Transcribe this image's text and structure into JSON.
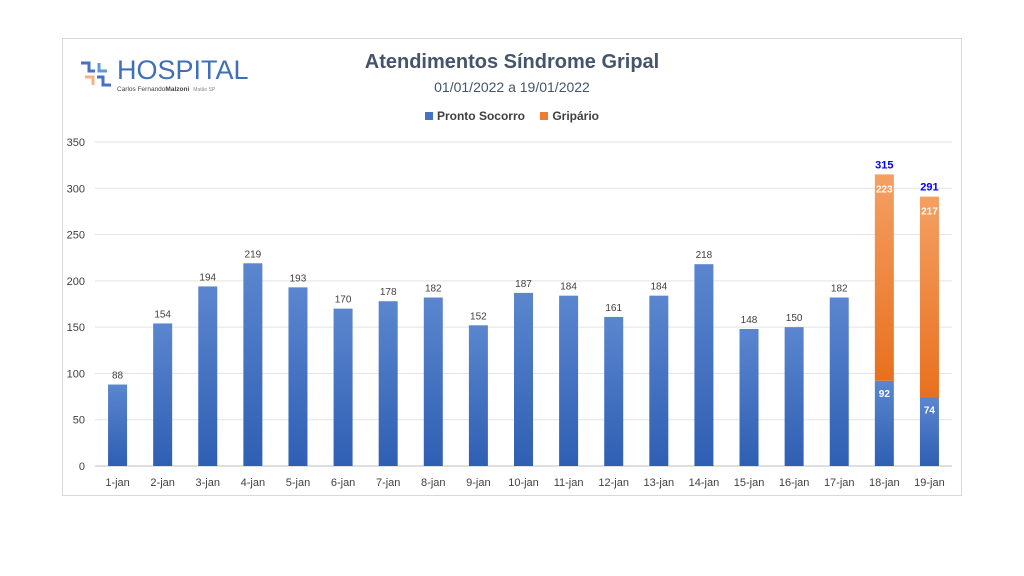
{
  "brand": {
    "name": "HOSPITAL",
    "subtitle_first": "Carlos Fernando",
    "subtitle_last": "Malzoni",
    "location": "Matão SP"
  },
  "colors": {
    "pronto_socorro": "#4472c4",
    "gripario": "#ed7d31",
    "total_label": "#0000ff"
  },
  "chart_data": {
    "type": "bar",
    "stacked": true,
    "title": "Atendimentos Síndrome Gripal",
    "subtitle": "01/01/2022 a 19/01/2022",
    "legend_position": "top",
    "grid": true,
    "ylim": [
      0,
      350
    ],
    "yticks": [
      0,
      50,
      100,
      150,
      200,
      250,
      300,
      350
    ],
    "categories": [
      "1-jan",
      "2-jan",
      "3-jan",
      "4-jan",
      "5-jan",
      "6-jan",
      "7-jan",
      "8-jan",
      "9-jan",
      "10-jan",
      "11-jan",
      "12-jan",
      "13-jan",
      "14-jan",
      "15-jan",
      "16-jan",
      "17-jan",
      "18-jan",
      "19-jan"
    ],
    "series": [
      {
        "name": "Pronto Socorro",
        "values": [
          88,
          154,
          194,
          219,
          193,
          170,
          178,
          182,
          152,
          187,
          184,
          161,
          184,
          218,
          148,
          150,
          182,
          92,
          74
        ]
      },
      {
        "name": "Gripário",
        "values": [
          null,
          null,
          null,
          null,
          null,
          null,
          null,
          null,
          null,
          null,
          null,
          null,
          null,
          null,
          null,
          null,
          null,
          223,
          217
        ]
      }
    ],
    "totals": [
      null,
      null,
      null,
      null,
      null,
      null,
      null,
      null,
      null,
      null,
      null,
      null,
      null,
      null,
      null,
      null,
      null,
      315,
      291
    ]
  }
}
